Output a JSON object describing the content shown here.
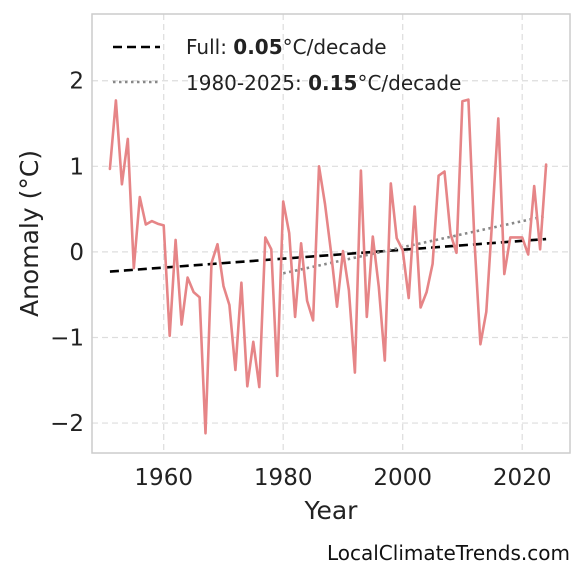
{
  "chart_data": {
    "type": "line",
    "title": "",
    "xlabel": "Year",
    "ylabel": "Anomaly (°C)",
    "xlim": [
      1948,
      2028
    ],
    "ylim": [
      -2.35,
      2.78
    ],
    "xticks": [
      1960,
      1980,
      2000,
      2020
    ],
    "yticks": [
      -2,
      -1,
      0,
      1,
      2
    ],
    "ytick_labels": [
      "−2",
      "−1",
      "0",
      "1",
      "2"
    ],
    "grid": true,
    "legend_position": "top-left",
    "colors": {
      "series": "#e68587",
      "full_trend": "#000000",
      "recent_trend": "#888888",
      "frame": "#cccccc",
      "grid": "#dddddd"
    },
    "series": [
      {
        "x": [
          1951,
          1952,
          1953,
          1954,
          1955,
          1956,
          1957,
          1958,
          1959,
          1960,
          1961,
          1962,
          1963,
          1964,
          1965,
          1966,
          1967,
          1968,
          1969,
          1970,
          1971,
          1972,
          1973,
          1974,
          1975,
          1976,
          1977,
          1978,
          1979,
          1980,
          1981,
          1982,
          1983,
          1984,
          1985,
          1986,
          1987,
          1988,
          1989,
          1990,
          1991,
          1992,
          1993,
          1994,
          1995,
          1996,
          1997,
          1998,
          1999,
          2000,
          2001,
          2002,
          2003,
          2004,
          2005,
          2006,
          2007,
          2008,
          2009,
          2010,
          2011,
          2012,
          2013,
          2014,
          2015,
          2016,
          2017,
          2018,
          2019,
          2020,
          2021,
          2022,
          2023,
          2024
        ],
        "values": [
          0.97,
          1.77,
          0.79,
          1.32,
          -0.19,
          0.64,
          0.32,
          0.36,
          0.33,
          0.31,
          -0.98,
          0.14,
          -0.85,
          -0.3,
          -0.47,
          -0.53,
          -2.12,
          -0.13,
          0.09,
          -0.4,
          -0.62,
          -1.38,
          -0.36,
          -1.57,
          -1.05,
          -1.58,
          0.17,
          0.03,
          -1.45,
          0.59,
          0.22,
          -0.76,
          0.1,
          -0.57,
          -0.8,
          1.0,
          0.56,
          0.0,
          -0.64,
          0.01,
          -0.45,
          -1.41,
          0.95,
          -0.76,
          0.18,
          -0.41,
          -1.27,
          0.8,
          0.16,
          0.02,
          -0.54,
          0.53,
          -0.65,
          -0.47,
          -0.14,
          0.89,
          0.94,
          0.21,
          -0.01,
          1.76,
          1.78,
          0.14,
          -1.08,
          -0.7,
          0.39,
          1.56,
          -0.26,
          0.17,
          0.17,
          0.17,
          -0.03,
          0.77,
          0.03,
          1.02
        ]
      }
    ],
    "trends": [
      {
        "style": "dashed",
        "x": [
          1951,
          2024
        ],
        "y": [
          -0.23,
          0.15
        ],
        "legend_prefix": "Full: ",
        "legend_value": "0.05",
        "legend_unit": "°C/decade"
      },
      {
        "style": "dotted",
        "x": [
          1980,
          2024
        ],
        "y": [
          -0.25,
          0.42
        ],
        "legend_prefix": "1980-2025: ",
        "legend_value": "0.15",
        "legend_unit": "°C/decade"
      }
    ]
  },
  "watermark": "LocalClimateTrends.com"
}
